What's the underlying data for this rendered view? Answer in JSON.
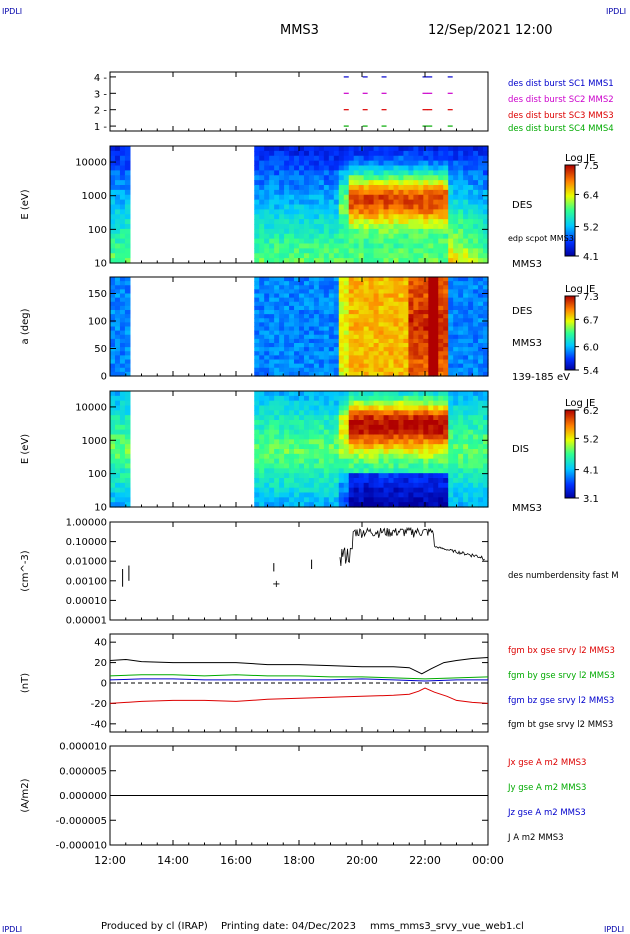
{
  "header": {
    "ipdli_left": "IPDLI",
    "ipdli_right": "IPDLI",
    "spacecraft": "MMS3",
    "datetime": "12/Sep/2021 12:00"
  },
  "footer": {
    "produced": "Produced by cl (IRAP)",
    "printing": "Printing date: 04/Dec/2023",
    "script": "mms_mms3_srvy_vue_web1.cl",
    "ipdli_left": "IPDLI",
    "ipdli_right": "IPDLI"
  },
  "x_axis": {
    "ticks": [
      "12:00",
      "14:00",
      "16:00",
      "18:00",
      "20:00",
      "22:00",
      "00:00"
    ],
    "tick_hours": [
      12,
      14,
      16,
      18,
      20,
      22,
      24
    ],
    "range": [
      12,
      24
    ]
  },
  "chart_data": [
    {
      "id": "burst",
      "type": "scatter",
      "yticks": [
        "1",
        "2",
        "3",
        "4"
      ],
      "ylim": [
        0.7,
        4.3
      ],
      "legend": [
        {
          "label": "des dist burst SC1 MMS1",
          "color": "#0000cc"
        },
        {
          "label": "des dist burst SC2 MMS2",
          "color": "#cc00cc"
        },
        {
          "label": "des dist burst SC3 MMS3",
          "color": "#dd0000"
        },
        {
          "label": "des dist burst SC4 MMS4",
          "color": "#00aa00"
        }
      ],
      "intervals_hours": [
        19.5,
        20.1,
        20.7,
        22.0,
        22.15,
        22.8
      ]
    },
    {
      "id": "des_energy",
      "type": "heatmap",
      "ylabel": "E (eV)",
      "scale": "log",
      "yticks": [
        "10",
        "100",
        "1000",
        "10000"
      ],
      "ylim": [
        10,
        30000
      ],
      "side_labels": [
        "DES",
        "edp scpot MMS3",
        "MMS3"
      ],
      "colorbar": {
        "title": "Log JE",
        "ticks": [
          "7.5",
          "6.4",
          "5.2",
          "4.1"
        ],
        "range": [
          4.1,
          7.5
        ]
      },
      "gap_hours": [
        12.7,
        16.6
      ]
    },
    {
      "id": "des_pitch",
      "type": "heatmap",
      "ylabel": "a (deg)",
      "yticks": [
        "0",
        "50",
        "100",
        "150"
      ],
      "ylim": [
        0,
        180
      ],
      "side_labels": [
        "DES",
        "MMS3",
        "139-185 eV"
      ],
      "colorbar": {
        "title": "Log JE",
        "ticks": [
          "7.3",
          "6.7",
          "6.0",
          "5.4"
        ],
        "range": [
          5.4,
          7.3
        ]
      },
      "gap_hours": [
        12.7,
        16.6
      ]
    },
    {
      "id": "dis_energy",
      "type": "heatmap",
      "ylabel": "E (eV)",
      "scale": "log",
      "yticks": [
        "10",
        "100",
        "1000",
        "10000"
      ],
      "ylim": [
        10,
        30000
      ],
      "side_labels": [
        "DIS",
        "MMS3"
      ],
      "colorbar": {
        "title": "Log JE",
        "ticks": [
          "6.2",
          "5.2",
          "4.1",
          "3.1"
        ],
        "range": [
          3.1,
          6.2
        ]
      },
      "gap_hours": [
        12.7,
        16.6
      ]
    },
    {
      "id": "density",
      "type": "line",
      "ylabel": "(cm^-3)",
      "scale": "log",
      "yticks": [
        "1.00000",
        "0.10000",
        "0.01000",
        "0.00100",
        "0.00010",
        "0.00001"
      ],
      "ylim": [
        1e-05,
        1
      ],
      "series": [
        {
          "name": "des numberdensity fast M",
          "color": "#000000"
        }
      ]
    },
    {
      "id": "bfield",
      "type": "line",
      "ylabel": "(nT)",
      "yticks": [
        "40",
        "20",
        "0",
        "-20",
        "-40"
      ],
      "ylim": [
        -48,
        48
      ],
      "series": [
        {
          "name": "fgm bx gse srvy l2 MMS3",
          "color": "#dd0000",
          "x": [
            12,
            13,
            14,
            15,
            16,
            17,
            18,
            19,
            20,
            21,
            21.5,
            21.8,
            22.0,
            22.3,
            22.7,
            23,
            23.5,
            24
          ],
          "values": [
            -20,
            -18,
            -17,
            -17,
            -18,
            -16,
            -15,
            -14,
            -13,
            -12,
            -11,
            -8,
            -5,
            -9,
            -13,
            -17,
            -19,
            -20
          ]
        },
        {
          "name": "fgm by gse srvy l2 MMS3",
          "color": "#00aa00",
          "x": [
            12,
            13,
            14,
            15,
            16,
            17,
            18,
            19,
            20,
            21,
            22,
            23,
            24
          ],
          "values": [
            7,
            8,
            8,
            7,
            8,
            7,
            7,
            6,
            6,
            5,
            4,
            5,
            6
          ]
        },
        {
          "name": "fgm bz gse srvy l2 MMS3",
          "color": "#0000cc",
          "x": [
            12,
            13,
            14,
            15,
            16,
            17,
            18,
            19,
            20,
            21,
            22,
            23,
            24
          ],
          "values": [
            3,
            4,
            4,
            3,
            3,
            3,
            3,
            3,
            4,
            3,
            2,
            3,
            3
          ]
        },
        {
          "name": "fgm bt gse srvy l2 MMS3",
          "color": "#000000",
          "x": [
            12,
            12.5,
            13,
            14,
            15,
            16,
            17,
            18,
            19,
            20,
            21,
            21.5,
            21.9,
            22.2,
            22.6,
            23,
            23.5,
            24
          ],
          "values": [
            22,
            23,
            21,
            20,
            20,
            20,
            18,
            18,
            17,
            16,
            16,
            15,
            9,
            14,
            20,
            22,
            24,
            25
          ]
        }
      ]
    },
    {
      "id": "current",
      "type": "line",
      "ylabel": "(A/m2)",
      "yticks": [
        "0.000010",
        "0.000005",
        "0.000000",
        "-0.000005",
        "-0.000010"
      ],
      "ylim": [
        -1e-05,
        1e-05
      ],
      "series": [
        {
          "name": "Jx gse A m2 MMS3",
          "color": "#dd0000"
        },
        {
          "name": "Jy gse A m2 MMS3",
          "color": "#00aa00"
        },
        {
          "name": "Jz gse A m2 MMS3",
          "color": "#0000cc"
        },
        {
          "name": "J A m2 MMS3",
          "color": "#000000"
        }
      ]
    }
  ]
}
